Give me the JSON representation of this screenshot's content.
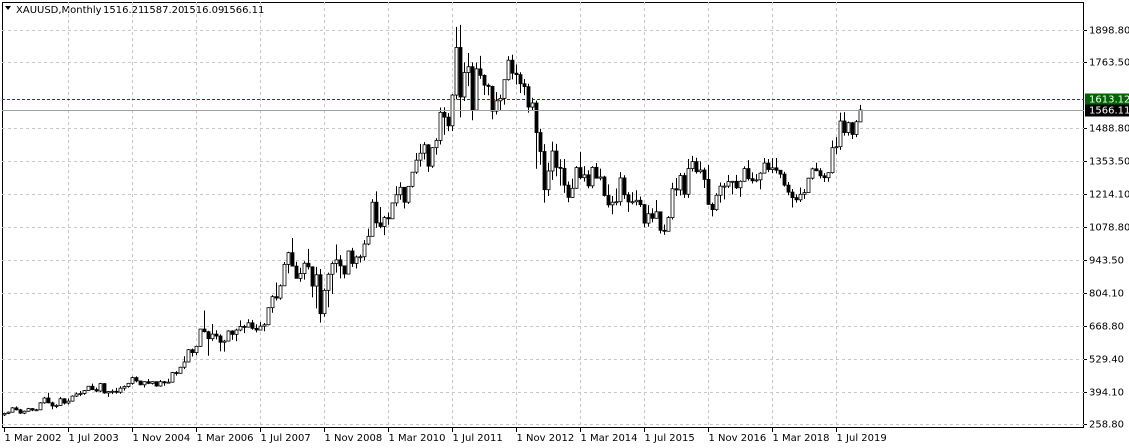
{
  "chart_data": {
    "type": "candlestick",
    "title": "XAUUSD,Monthly",
    "last_bar_labels": [
      "1516.21",
      "1587.20",
      "1516.09",
      "1566.11"
    ],
    "categories": [
      "1 Mar 2002",
      null,
      null,
      null,
      null,
      null,
      null,
      null,
      null,
      null,
      null,
      null,
      null,
      null,
      null,
      null,
      "1 Jul 2003",
      null,
      null,
      null,
      null,
      null,
      null,
      null,
      null,
      null,
      null,
      null,
      null,
      null,
      null,
      null,
      "1 Nov 2004",
      null,
      null,
      null,
      null,
      null,
      null,
      null,
      null,
      null,
      null,
      null,
      null,
      null,
      null,
      null,
      "1 Mar 2006",
      null,
      null,
      null,
      null,
      null,
      null,
      null,
      null,
      null,
      null,
      null,
      null,
      null,
      null,
      null,
      "1 Jul 2007",
      null,
      null,
      null,
      null,
      null,
      null,
      null,
      null,
      null,
      null,
      null,
      null,
      null,
      null,
      null,
      "1 Nov 2008",
      null,
      null,
      null,
      null,
      null,
      null,
      null,
      null,
      null,
      null,
      null,
      null,
      null,
      null,
      null,
      "1 Mar 2010",
      null,
      null,
      null,
      null,
      null,
      null,
      null,
      null,
      null,
      null,
      null,
      null,
      null,
      null,
      null,
      "1 Jul 2011",
      null,
      null,
      null,
      null,
      null,
      null,
      null,
      null,
      null,
      null,
      null,
      null,
      null,
      null,
      null,
      "1 Nov 2012",
      null,
      null,
      null,
      null,
      null,
      null,
      null,
      null,
      null,
      null,
      null,
      null,
      null,
      null,
      null,
      "1 Mar 2014",
      null,
      null,
      null,
      null,
      null,
      null,
      null,
      null,
      null,
      null,
      null,
      null,
      null,
      null,
      null,
      "1 Jul 2015",
      null,
      null,
      null,
      null,
      null,
      null,
      null,
      null,
      null,
      null,
      null,
      null,
      null,
      null,
      null,
      "1 Nov 2016",
      null,
      null,
      null,
      null,
      null,
      null,
      null,
      null,
      null,
      null,
      null,
      null,
      null,
      null,
      null,
      "1 Mar 2018",
      null,
      null,
      null,
      null,
      null,
      null,
      null,
      null,
      null,
      null,
      null,
      null,
      null,
      null,
      null,
      "1 Jul 2019",
      null,
      null,
      null,
      null,
      null,
      null
    ],
    "ohlc": [
      [
        297,
        306,
        292,
        303
      ],
      [
        303,
        311,
        300,
        308
      ],
      [
        308,
        329,
        306,
        326
      ],
      [
        326,
        332,
        315,
        318
      ],
      [
        318,
        322,
        301,
        304
      ],
      [
        304,
        315,
        300,
        312
      ],
      [
        312,
        326,
        310,
        323
      ],
      [
        323,
        325,
        312,
        317
      ],
      [
        317,
        322,
        314,
        318
      ],
      [
        318,
        350,
        316,
        347
      ],
      [
        347,
        372,
        343,
        367
      ],
      [
        367,
        389,
        345,
        347
      ],
      [
        347,
        352,
        320,
        334
      ],
      [
        334,
        341,
        325,
        336
      ],
      [
        336,
        372,
        334,
        364
      ],
      [
        364,
        366,
        340,
        346
      ],
      [
        346,
        365,
        340,
        354
      ],
      [
        354,
        378,
        352,
        375
      ],
      [
        375,
        390,
        371,
        384
      ],
      [
        384,
        396,
        375,
        386
      ],
      [
        386,
        400,
        380,
        398
      ],
      [
        398,
        417,
        396,
        416
      ],
      [
        416,
        427,
        400,
        402
      ],
      [
        402,
        410,
        391,
        396
      ],
      [
        396,
        430,
        392,
        427
      ],
      [
        427,
        429,
        385,
        388
      ],
      [
        388,
        396,
        372,
        394
      ],
      [
        394,
        403,
        383,
        395
      ],
      [
        395,
        409,
        385,
        391
      ],
      [
        391,
        416,
        385,
        408
      ],
      [
        408,
        419,
        398,
        415
      ],
      [
        415,
        430,
        410,
        428
      ],
      [
        428,
        456,
        422,
        452
      ],
      [
        452,
        457,
        432,
        438
      ],
      [
        438,
        440,
        420,
        422
      ],
      [
        422,
        437,
        411,
        435
      ],
      [
        435,
        446,
        425,
        428
      ],
      [
        428,
        437,
        423,
        435
      ],
      [
        435,
        436,
        414,
        417
      ],
      [
        417,
        442,
        414,
        435
      ],
      [
        435,
        438,
        418,
        430
      ],
      [
        430,
        447,
        428,
        433
      ],
      [
        433,
        476,
        431,
        473
      ],
      [
        473,
        479,
        460,
        470
      ],
      [
        470,
        497,
        468,
        495
      ],
      [
        495,
        541,
        488,
        517
      ],
      [
        517,
        571,
        516,
        568
      ],
      [
        568,
        573,
        540,
        556
      ],
      [
        556,
        585,
        545,
        582
      ],
      [
        582,
        655,
        580,
        654
      ],
      [
        654,
        731,
        640,
        643
      ],
      [
        643,
        647,
        543,
        614
      ],
      [
        614,
        675,
        605,
        633
      ],
      [
        633,
        649,
        611,
        625
      ],
      [
        625,
        632,
        561,
        599
      ],
      [
        599,
        609,
        560,
        604
      ],
      [
        604,
        649,
        602,
        646
      ],
      [
        646,
        649,
        609,
        632
      ],
      [
        632,
        656,
        604,
        650
      ],
      [
        650,
        690,
        645,
        665
      ],
      [
        665,
        672,
        637,
        662
      ],
      [
        662,
        695,
        660,
        680
      ],
      [
        680,
        692,
        651,
        657
      ],
      [
        657,
        674,
        640,
        650
      ],
      [
        650,
        683,
        648,
        666
      ],
      [
        666,
        679,
        645,
        672
      ],
      [
        672,
        745,
        670,
        743
      ],
      [
        743,
        795,
        722,
        789
      ],
      [
        789,
        848,
        773,
        783
      ],
      [
        783,
        840,
        776,
        834
      ],
      [
        834,
        933,
        833,
        923
      ],
      [
        923,
        976,
        886,
        972
      ],
      [
        972,
        1033,
        920,
        916
      ],
      [
        916,
        934,
        865,
        865
      ],
      [
        865,
        909,
        851,
        885
      ],
      [
        885,
        936,
        860,
        928
      ],
      [
        928,
        988,
        902,
        913
      ],
      [
        913,
        915,
        786,
        833
      ],
      [
        833,
        913,
        740,
        880
      ],
      [
        880,
        904,
        681,
        718
      ],
      [
        718,
        823,
        705,
        815
      ],
      [
        815,
        889,
        745,
        882
      ],
      [
        882,
        935,
        800,
        927
      ],
      [
        927,
        1006,
        889,
        942
      ],
      [
        942,
        962,
        865,
        917
      ],
      [
        917,
        917,
        865,
        883
      ],
      [
        883,
        981,
        882,
        979
      ],
      [
        979,
        992,
        913,
        927
      ],
      [
        927,
        960,
        906,
        954
      ],
      [
        954,
        964,
        931,
        955
      ],
      [
        955,
        1024,
        940,
        1008
      ],
      [
        1008,
        1072,
        1003,
        1040
      ],
      [
        1040,
        1195,
        1040,
        1182
      ],
      [
        1182,
        1227,
        1075,
        1096
      ],
      [
        1096,
        1162,
        1074,
        1081
      ],
      [
        1081,
        1125,
        1045,
        1118
      ],
      [
        1118,
        1139,
        1088,
        1113
      ],
      [
        1113,
        1180,
        1113,
        1179
      ],
      [
        1179,
        1249,
        1165,
        1213
      ],
      [
        1213,
        1265,
        1192,
        1244
      ],
      [
        1244,
        1245,
        1156,
        1182
      ],
      [
        1182,
        1249,
        1175,
        1248
      ],
      [
        1248,
        1307,
        1243,
        1307
      ],
      [
        1307,
        1387,
        1300,
        1357
      ],
      [
        1357,
        1425,
        1330,
        1386
      ],
      [
        1386,
        1432,
        1360,
        1421
      ],
      [
        1421,
        1424,
        1308,
        1332
      ],
      [
        1332,
        1411,
        1325,
        1409
      ],
      [
        1409,
        1448,
        1380,
        1439
      ],
      [
        1439,
        1576,
        1422,
        1556
      ],
      [
        1556,
        1577,
        1462,
        1536
      ],
      [
        1536,
        1553,
        1478,
        1500
      ],
      [
        1500,
        1632,
        1478,
        1628
      ],
      [
        1628,
        1912,
        1610,
        1826
      ],
      [
        1826,
        1920,
        1535,
        1620
      ],
      [
        1620,
        1764,
        1603,
        1722
      ],
      [
        1722,
        1803,
        1665,
        1746
      ],
      [
        1746,
        1764,
        1523,
        1565
      ],
      [
        1565,
        1763,
        1564,
        1737
      ],
      [
        1737,
        1791,
        1696,
        1710
      ],
      [
        1710,
        1714,
        1628,
        1669
      ],
      [
        1669,
        1676,
        1627,
        1664
      ],
      [
        1664,
        1667,
        1527,
        1561
      ],
      [
        1561,
        1640,
        1547,
        1604
      ],
      [
        1604,
        1630,
        1564,
        1614
      ],
      [
        1614,
        1692,
        1588,
        1692
      ],
      [
        1692,
        1790,
        1688,
        1773
      ],
      [
        1773,
        1796,
        1693,
        1719
      ],
      [
        1719,
        1755,
        1672,
        1713
      ],
      [
        1713,
        1723,
        1636,
        1675
      ],
      [
        1675,
        1695,
        1627,
        1663
      ],
      [
        1663,
        1675,
        1555,
        1578
      ],
      [
        1578,
        1617,
        1565,
        1595
      ],
      [
        1595,
        1605,
        1321,
        1472
      ],
      [
        1472,
        1488,
        1338,
        1393
      ],
      [
        1393,
        1424,
        1180,
        1234
      ],
      [
        1234,
        1346,
        1208,
        1312
      ],
      [
        1312,
        1434,
        1275,
        1395
      ],
      [
        1395,
        1425,
        1290,
        1327
      ],
      [
        1327,
        1361,
        1251,
        1323
      ],
      [
        1323,
        1362,
        1221,
        1253
      ],
      [
        1253,
        1268,
        1182,
        1202
      ],
      [
        1202,
        1280,
        1200,
        1240
      ],
      [
        1240,
        1332,
        1238,
        1326
      ],
      [
        1326,
        1392,
        1277,
        1284
      ],
      [
        1284,
        1332,
        1268,
        1296
      ],
      [
        1296,
        1315,
        1240,
        1250
      ],
      [
        1250,
        1332,
        1240,
        1327
      ],
      [
        1327,
        1345,
        1282,
        1282
      ],
      [
        1282,
        1322,
        1273,
        1287
      ],
      [
        1287,
        1292,
        1206,
        1210
      ],
      [
        1210,
        1256,
        1160,
        1171
      ],
      [
        1171,
        1208,
        1132,
        1182
      ],
      [
        1182,
        1239,
        1169,
        1184
      ],
      [
        1184,
        1307,
        1168,
        1283
      ],
      [
        1283,
        1294,
        1196,
        1213
      ],
      [
        1213,
        1224,
        1142,
        1183
      ],
      [
        1183,
        1224,
        1173,
        1184
      ],
      [
        1184,
        1232,
        1169,
        1190
      ],
      [
        1190,
        1205,
        1162,
        1172
      ],
      [
        1172,
        1175,
        1077,
        1095
      ],
      [
        1095,
        1170,
        1080,
        1134
      ],
      [
        1134,
        1157,
        1098,
        1115
      ],
      [
        1115,
        1191,
        1114,
        1142
      ],
      [
        1142,
        1143,
        1052,
        1065
      ],
      [
        1065,
        1089,
        1046,
        1061
      ],
      [
        1061,
        1124,
        1060,
        1118
      ],
      [
        1118,
        1263,
        1110,
        1238
      ],
      [
        1238,
        1283,
        1208,
        1233
      ],
      [
        1233,
        1304,
        1210,
        1293
      ],
      [
        1293,
        1304,
        1200,
        1215
      ],
      [
        1215,
        1362,
        1200,
        1322
      ],
      [
        1322,
        1375,
        1310,
        1351
      ],
      [
        1351,
        1367,
        1301,
        1309
      ],
      [
        1309,
        1352,
        1302,
        1316
      ],
      [
        1316,
        1326,
        1241,
        1277
      ],
      [
        1277,
        1337,
        1171,
        1173
      ],
      [
        1173,
        1180,
        1123,
        1151
      ],
      [
        1151,
        1220,
        1146,
        1211
      ],
      [
        1211,
        1264,
        1180,
        1249
      ],
      [
        1249,
        1262,
        1194,
        1249
      ],
      [
        1249,
        1295,
        1241,
        1268
      ],
      [
        1268,
        1271,
        1214,
        1269
      ],
      [
        1269,
        1296,
        1237,
        1242
      ],
      [
        1242,
        1273,
        1204,
        1269
      ],
      [
        1269,
        1331,
        1267,
        1322
      ],
      [
        1322,
        1357,
        1272,
        1280
      ],
      [
        1280,
        1306,
        1260,
        1271
      ],
      [
        1271,
        1299,
        1265,
        1275
      ],
      [
        1275,
        1307,
        1236,
        1303
      ],
      [
        1303,
        1366,
        1302,
        1345
      ],
      [
        1345,
        1362,
        1307,
        1318
      ],
      [
        1318,
        1365,
        1303,
        1325
      ],
      [
        1325,
        1366,
        1302,
        1315
      ],
      [
        1315,
        1316,
        1282,
        1299
      ],
      [
        1299,
        1309,
        1247,
        1253
      ],
      [
        1253,
        1266,
        1211,
        1224
      ],
      [
        1224,
        1237,
        1160,
        1201
      ],
      [
        1201,
        1214,
        1180,
        1192
      ],
      [
        1192,
        1243,
        1183,
        1215
      ],
      [
        1215,
        1237,
        1196,
        1222
      ],
      [
        1222,
        1284,
        1221,
        1282
      ],
      [
        1282,
        1326,
        1276,
        1321
      ],
      [
        1321,
        1346,
        1311,
        1313
      ],
      [
        1313,
        1324,
        1281,
        1292
      ],
      [
        1292,
        1303,
        1266,
        1284
      ],
      [
        1284,
        1306,
        1267,
        1305
      ],
      [
        1305,
        1439,
        1301,
        1409
      ],
      [
        1409,
        1453,
        1382,
        1413
      ],
      [
        1413,
        1555,
        1400,
        1520
      ],
      [
        1520,
        1557,
        1459,
        1472
      ],
      [
        1472,
        1518,
        1459,
        1513
      ],
      [
        1513,
        1516,
        1445,
        1464
      ],
      [
        1464,
        1524,
        1453,
        1517
      ],
      [
        1516.21,
        1587.2,
        1516.09,
        1566.11
      ]
    ],
    "ylim": [
      242.2,
      2015.3
    ],
    "yticks": [
      {
        "value": 258.8,
        "label": "258.80"
      },
      {
        "value": 394.1,
        "label": "394.10"
      },
      {
        "value": 529.4,
        "label": "529.40"
      },
      {
        "value": 668.8,
        "label": "668.80"
      },
      {
        "value": 804.1,
        "label": "804.10"
      },
      {
        "value": 943.5,
        "label": "943.50"
      },
      {
        "value": 1078.8,
        "label": "1078.80"
      },
      {
        "value": 1214.1,
        "label": "1214.10"
      },
      {
        "value": 1353.5,
        "label": "1353.50"
      },
      {
        "value": 1488.8,
        "label": "1488.80"
      },
      {
        "value": 1763.5,
        "label": "1763.50"
      },
      {
        "value": 1898.8,
        "label": "1898.80"
      }
    ],
    "levels": [
      {
        "value": 1613.12,
        "color": "#006400"
      }
    ],
    "grid": true,
    "up_color": "#ffffff",
    "down_color": "#000000",
    "line_color": "#000000"
  }
}
